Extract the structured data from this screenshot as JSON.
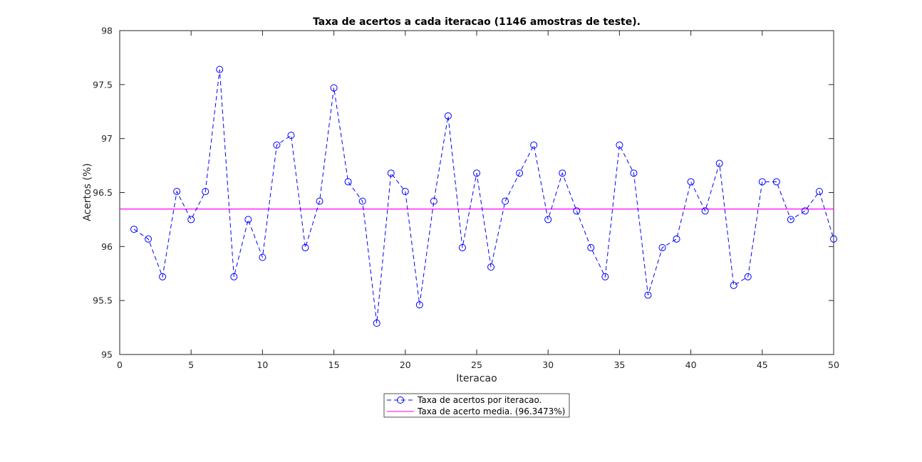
{
  "chart_data": {
    "type": "line",
    "title": "Taxa de acertos a cada iteracao (1146 amostras de teste).",
    "xlabel": "Iteracao",
    "ylabel": "Acertos (%)",
    "xlim": [
      0,
      50
    ],
    "ylim": [
      95,
      98
    ],
    "xticks": [
      0,
      5,
      10,
      15,
      20,
      25,
      30,
      35,
      40,
      45,
      50
    ],
    "yticks": [
      95,
      95.5,
      96,
      96.5,
      97,
      97.5,
      98
    ],
    "ytick_labels": [
      "95",
      "95.5",
      "96",
      "96.5",
      "97",
      "97.5",
      "98"
    ],
    "grid": false,
    "legend_position": "bottom-center, outside",
    "x": [
      1,
      2,
      3,
      4,
      5,
      6,
      7,
      8,
      9,
      10,
      11,
      12,
      13,
      14,
      15,
      16,
      17,
      18,
      19,
      20,
      21,
      22,
      23,
      24,
      25,
      26,
      27,
      28,
      29,
      30,
      31,
      32,
      33,
      34,
      35,
      36,
      37,
      38,
      39,
      40,
      41,
      42,
      43,
      44,
      45,
      46,
      47,
      48,
      49,
      50
    ],
    "series": [
      {
        "name": "Taxa de acertos por iteracao.",
        "color": "#0000ff",
        "style": "dashed",
        "marker": "circle",
        "values": [
          96.16,
          96.07,
          95.72,
          96.51,
          96.25,
          96.51,
          97.64,
          95.72,
          96.25,
          95.9,
          96.94,
          97.03,
          95.99,
          96.42,
          97.47,
          96.6,
          96.42,
          95.29,
          96.68,
          96.51,
          95.46,
          96.42,
          97.21,
          95.99,
          96.68,
          95.81,
          96.42,
          96.68,
          96.94,
          96.25,
          96.68,
          96.33,
          95.99,
          95.72,
          96.94,
          96.68,
          95.55,
          95.99,
          96.07,
          96.6,
          96.33,
          96.77,
          95.64,
          95.72,
          96.6,
          96.6,
          96.25,
          96.33,
          96.51,
          96.07
        ]
      },
      {
        "name": "Taxa de acerto media. (96.3473%)",
        "color": "#ff00ff",
        "style": "solid",
        "marker": "none",
        "constant": 96.3473
      }
    ]
  }
}
